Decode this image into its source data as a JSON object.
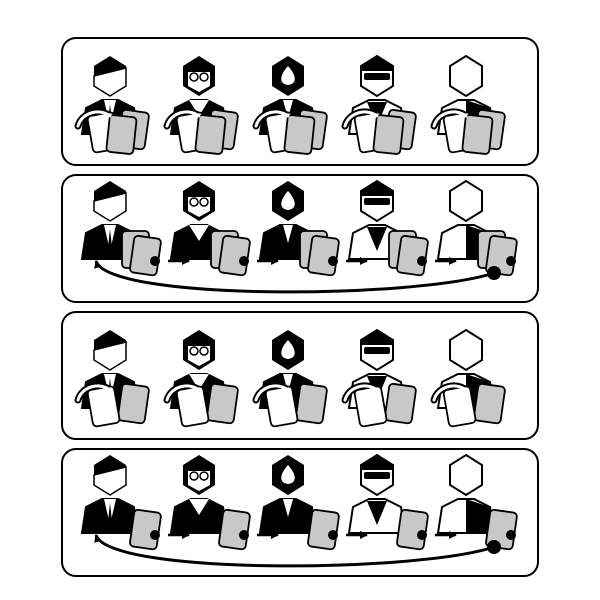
{
  "diagram": {
    "description_kind": "card-passing rounds",
    "colors": {
      "ink": "#000000",
      "paper": "#ffffff",
      "card_back": "#c8c8c8"
    },
    "players": [
      {
        "id": "player-1",
        "style": "hooded-split-face"
      },
      {
        "id": "player-2",
        "style": "glasses-long-hair"
      },
      {
        "id": "player-3",
        "style": "spade-face"
      },
      {
        "id": "player-4",
        "style": "sunglasses"
      },
      {
        "id": "player-5",
        "style": "outline-head"
      }
    ],
    "panels": [
      {
        "id": "panel-1",
        "phase": "holding-hands",
        "front_cards": 2,
        "back_cards": 1
      },
      {
        "id": "panel-2",
        "phase": "passing-right-with-wraparound",
        "cards_in_play": 2
      },
      {
        "id": "panel-3",
        "phase": "holding-hands",
        "front_cards": 1,
        "back_cards": 1
      },
      {
        "id": "panel-4",
        "phase": "passing-right-with-wraparound",
        "cards_in_play": 1
      }
    ]
  }
}
